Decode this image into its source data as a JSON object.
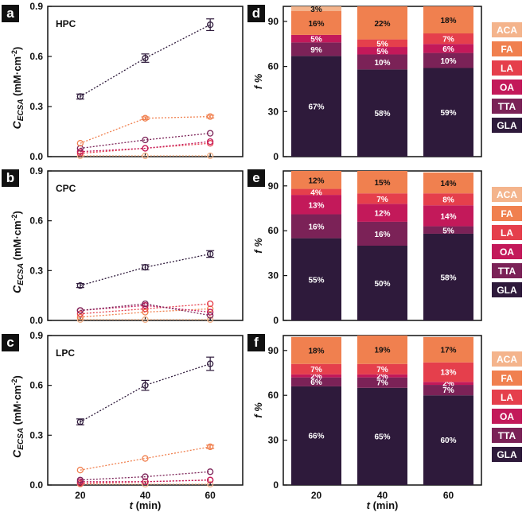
{
  "colors": {
    "HPC": "#2e1a3b",
    "TTA": "#7b2257",
    "OA": "#c3195a",
    "LA": "#e53f4c",
    "FA": "#f0804f",
    "ACA": "#f4b48c",
    "black": "#111111"
  },
  "legend": {
    "items": [
      {
        "name": "ACA",
        "color": "#f4b48c",
        "text_color": "#ffffff"
      },
      {
        "name": "FA",
        "color": "#f0804f",
        "text_color": "#ffffff"
      },
      {
        "name": "LA",
        "color": "#e53f4c",
        "text_color": "#ffffff"
      },
      {
        "name": "OA",
        "color": "#c3195a",
        "text_color": "#ffffff"
      },
      {
        "name": "TTA",
        "color": "#7b2257",
        "text_color": "#ffffff"
      },
      {
        "name": "GLA",
        "color": "#2e1a3b",
        "text_color": "#ffffff"
      }
    ]
  },
  "axes": {
    "line_ylabel_main": "C",
    "line_ylabel_sub": "ECSA",
    "line_ylabel_unit": " (mM·cm",
    "line_ylabel_sup": "-2",
    "line_ylabel_end": ")",
    "bar_ylabel": "f %",
    "xlabel_t": "t",
    "xlabel_unit": " (min)"
  },
  "chart_data": [
    {
      "panel": "a",
      "type": "line",
      "sample": "HPC",
      "x": [
        20,
        40,
        60
      ],
      "xlim": [
        10,
        70
      ],
      "ylim": [
        0,
        0.9
      ],
      "yticks": [
        "0.0",
        "0.3",
        "0.6",
        "0.9"
      ],
      "xticks": [
        "20",
        "40",
        "60"
      ],
      "series": [
        {
          "name": "GLA",
          "values": [
            0.36,
            0.59,
            0.79
          ],
          "errors": [
            0.015,
            0.025,
            0.035
          ]
        },
        {
          "name": "FA",
          "values": [
            0.08,
            0.23,
            0.24
          ],
          "errors": [
            0.006,
            0.008,
            0.008
          ]
        },
        {
          "name": "TTA",
          "values": [
            0.05,
            0.1,
            0.14
          ],
          "errors": [
            0.005,
            0.005,
            0.005
          ]
        },
        {
          "name": "OA",
          "values": [
            0.03,
            0.05,
            0.09
          ],
          "errors": [
            0.004,
            0.004,
            0.005
          ]
        },
        {
          "name": "LA",
          "values": [
            0.02,
            0.05,
            0.08
          ],
          "errors": [
            0.004,
            0.004,
            0.005
          ]
        },
        {
          "name": "ACA",
          "values": [
            0.005,
            0.005,
            0.005
          ],
          "errors": [
            0.002,
            0.002,
            0.002
          ]
        }
      ]
    },
    {
      "panel": "b",
      "type": "line",
      "sample": "CPC",
      "x": [
        20,
        40,
        60
      ],
      "xlim": [
        10,
        70
      ],
      "ylim": [
        0,
        0.9
      ],
      "yticks": [
        "0.0",
        "0.3",
        "0.6",
        "0.9"
      ],
      "xticks": [
        "20",
        "40",
        "60"
      ],
      "series": [
        {
          "name": "GLA",
          "values": [
            0.21,
            0.32,
            0.4
          ],
          "errors": [
            0.012,
            0.015,
            0.02
          ]
        },
        {
          "name": "TTA",
          "values": [
            0.06,
            0.1,
            0.03
          ],
          "errors": [
            0.004,
            0.005,
            0.004
          ]
        },
        {
          "name": "OA",
          "values": [
            0.06,
            0.09,
            0.05
          ],
          "errors": [
            0.004,
            0.005,
            0.004
          ]
        },
        {
          "name": "LA",
          "values": [
            0.04,
            0.07,
            0.1
          ],
          "errors": [
            0.004,
            0.004,
            0.005
          ]
        },
        {
          "name": "FA",
          "values": [
            0.02,
            0.05,
            0.07
          ],
          "errors": [
            0.003,
            0.004,
            0.004
          ]
        },
        {
          "name": "ACA",
          "values": [
            0.005,
            0.005,
            0.005
          ],
          "errors": [
            0.002,
            0.002,
            0.002
          ]
        }
      ]
    },
    {
      "panel": "c",
      "type": "line",
      "sample": "LPC",
      "x": [
        20,
        40,
        60
      ],
      "xlim": [
        10,
        70
      ],
      "ylim": [
        0,
        0.9
      ],
      "yticks": [
        "0.0",
        "0.3",
        "0.6",
        "0.9"
      ],
      "xticks": [
        "20",
        "40",
        "60"
      ],
      "series": [
        {
          "name": "GLA",
          "values": [
            0.38,
            0.6,
            0.73
          ],
          "errors": [
            0.018,
            0.03,
            0.04
          ]
        },
        {
          "name": "FA",
          "values": [
            0.09,
            0.16,
            0.23
          ],
          "errors": [
            0.005,
            0.006,
            0.01
          ]
        },
        {
          "name": "TTA",
          "values": [
            0.03,
            0.05,
            0.08
          ],
          "errors": [
            0.003,
            0.004,
            0.004
          ]
        },
        {
          "name": "OA",
          "values": [
            0.02,
            0.02,
            0.03
          ],
          "errors": [
            0.003,
            0.003,
            0.003
          ]
        },
        {
          "name": "LA",
          "values": [
            0.01,
            0.02,
            0.03
          ],
          "errors": [
            0.003,
            0.003,
            0.003
          ]
        },
        {
          "name": "ACA",
          "values": [
            0.005,
            0.005,
            0.005
          ],
          "errors": [
            0.002,
            0.002,
            0.002
          ]
        }
      ]
    },
    {
      "panel": "d",
      "type": "bar",
      "stacked": true,
      "categories": [
        "20",
        "40",
        "60"
      ],
      "ylim": [
        0,
        100
      ],
      "yticks": [
        "0",
        "30",
        "60",
        "90"
      ],
      "series": [
        {
          "name": "GLA",
          "values": [
            67,
            58,
            59
          ],
          "labels": [
            "67%",
            "58%",
            "59%"
          ]
        },
        {
          "name": "TTA",
          "values": [
            9,
            10,
            10
          ],
          "labels": [
            "9%",
            "10%",
            "10%"
          ]
        },
        {
          "name": "OA",
          "values": [
            5,
            5,
            6
          ],
          "labels": [
            "5%",
            "5%",
            "6%"
          ]
        },
        {
          "name": "LA",
          "values": [
            0,
            5,
            7
          ],
          "labels": [
            "",
            "5%",
            "7%"
          ]
        },
        {
          "name": "FA",
          "values": [
            16,
            22,
            18
          ],
          "labels": [
            "16%",
            "22%",
            "18%"
          ]
        },
        {
          "name": "ACA",
          "values": [
            3,
            0,
            0
          ],
          "labels": [
            "3%",
            "",
            ""
          ]
        }
      ]
    },
    {
      "panel": "e",
      "type": "bar",
      "stacked": true,
      "categories": [
        "20",
        "40",
        "60"
      ],
      "ylim": [
        0,
        100
      ],
      "yticks": [
        "0",
        "30",
        "60",
        "90"
      ],
      "series": [
        {
          "name": "GLA",
          "values": [
            55,
            50,
            58
          ],
          "labels": [
            "55%",
            "50%",
            "58%"
          ]
        },
        {
          "name": "TTA",
          "values": [
            16,
            16,
            5
          ],
          "labels": [
            "16%",
            "16%",
            "5%"
          ]
        },
        {
          "name": "OA",
          "values": [
            13,
            12,
            14
          ],
          "labels": [
            "13%",
            "12%",
            "14%"
          ]
        },
        {
          "name": "LA",
          "values": [
            4,
            7,
            8
          ],
          "labels": [
            "4%",
            "7%",
            "8%"
          ]
        },
        {
          "name": "FA",
          "values": [
            12,
            15,
            14
          ],
          "labels": [
            "12%",
            "15%",
            "14%"
          ]
        },
        {
          "name": "ACA",
          "values": [
            0,
            0,
            0
          ],
          "labels": [
            "",
            "",
            ""
          ]
        }
      ]
    },
    {
      "panel": "f",
      "type": "bar",
      "stacked": true,
      "categories": [
        "20",
        "40",
        "60"
      ],
      "ylim": [
        0,
        100
      ],
      "yticks": [
        "0",
        "30",
        "60",
        "90"
      ],
      "series": [
        {
          "name": "GLA",
          "values": [
            66,
            65,
            60
          ],
          "labels": [
            "66%",
            "65%",
            "60%"
          ]
        },
        {
          "name": "TTA",
          "values": [
            6,
            7,
            7
          ],
          "labels": [
            "6%",
            "7%",
            "7%"
          ]
        },
        {
          "name": "OA",
          "values": [
            2,
            2,
            2
          ],
          "labels": [
            "2%",
            "2%",
            "2%"
          ]
        },
        {
          "name": "LA",
          "values": [
            7,
            7,
            13
          ],
          "labels": [
            "7%",
            "7%",
            "13%"
          ]
        },
        {
          "name": "FA",
          "values": [
            18,
            19,
            17
          ],
          "labels": [
            "18%",
            "19%",
            "17%"
          ]
        },
        {
          "name": "ACA",
          "values": [
            0,
            0,
            0
          ],
          "labels": [
            "",
            "",
            ""
          ]
        }
      ]
    }
  ]
}
